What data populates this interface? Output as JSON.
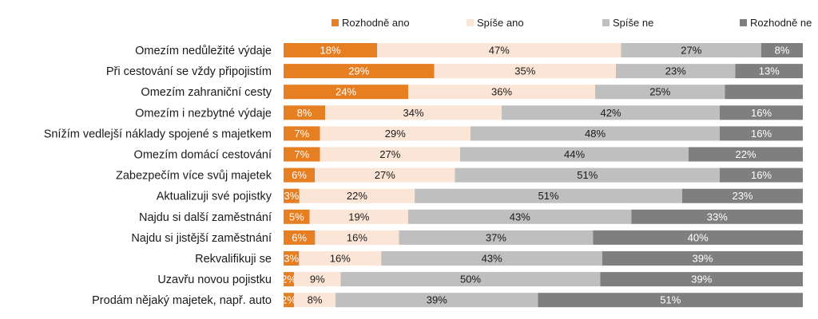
{
  "chart_data": {
    "type": "bar",
    "orientation": "horizontal",
    "stacked": "percent",
    "title": "",
    "xlabel": "",
    "ylabel": "",
    "xlim": [
      0,
      100
    ],
    "grid": false,
    "legend_position": "top",
    "categories": [
      "Omezím nedůležité výdaje",
      "Při cestování se vždy připojistím",
      "Omezím zahraniční cesty",
      "Omezím i nezbytné výdaje",
      "Snížím vedlejší náklady spojené s majetkem",
      "Omezím domácí cestování",
      "Zabezpečím více svůj majetek",
      "Aktualizuji své pojistky",
      "Najdu si další zaměstnání",
      "Najdu si jistější zaměstnání",
      "Rekvalifikuji se",
      "Uzavřu novou pojistku",
      "Prodám nějaký majetek, např. auto"
    ],
    "series": [
      {
        "name": "Rozhodně ano",
        "color": "#E67E22",
        "label_color": "#ffffff",
        "values": [
          18,
          29,
          24,
          8,
          7,
          7,
          6,
          3,
          5,
          6,
          3,
          2,
          2
        ],
        "labels": [
          "18%",
          "29%",
          "24%",
          "8%",
          "7%",
          "7%",
          "6%",
          "3%",
          "5%",
          "6%",
          "3%",
          "2%",
          "2%"
        ]
      },
      {
        "name": "Spíše ano",
        "color": "#FBE5D6",
        "label_color": "#1a1a1a",
        "values": [
          47,
          35,
          36,
          34,
          29,
          27,
          27,
          22,
          19,
          16,
          16,
          9,
          8
        ],
        "labels": [
          "47%",
          "35%",
          "36%",
          "34%",
          "29%",
          "27%",
          "27%",
          "22%",
          "19%",
          "16%",
          "16%",
          "9%",
          "8%"
        ]
      },
      {
        "name": "Spíše ne",
        "color": "#BFBFBF",
        "label_color": "#1a1a1a",
        "values": [
          27,
          23,
          25,
          42,
          48,
          44,
          51,
          51,
          43,
          37,
          43,
          50,
          39
        ],
        "labels": [
          "27%",
          "23%",
          "25%",
          "42%",
          "48%",
          "44%",
          "51%",
          "51%",
          "43%",
          "37%",
          "43%",
          "50%",
          "39%"
        ]
      },
      {
        "name": "Rozhodně ne",
        "color": "#7F7F7F",
        "label_color": "#ffffff",
        "values": [
          8,
          13,
          15,
          16,
          16,
          22,
          16,
          23,
          33,
          40,
          39,
          39,
          51
        ],
        "labels": [
          "8%",
          "13%",
          "",
          "16%",
          "16%",
          "22%",
          "16%",
          "23%",
          "33%",
          "40%",
          "39%",
          "39%",
          "51%"
        ]
      }
    ]
  }
}
